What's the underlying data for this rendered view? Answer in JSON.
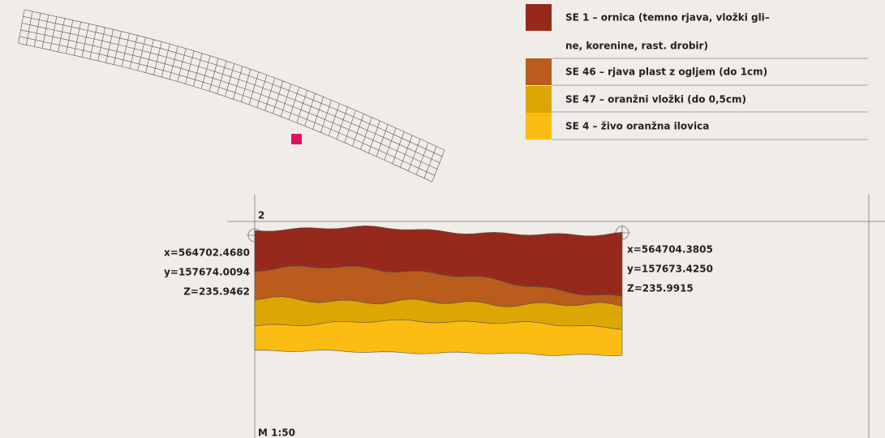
{
  "legend": [
    {
      "color": "#96291c",
      "lines": [
        "SE 1 – ornica (temno rjava, vložki gli–",
        "ne, korenine, rast. drobir)"
      ]
    },
    {
      "color": "#b95c1c",
      "lines": [
        "SE 46 – rjava plast z ogljem (do 1cm)"
      ]
    },
    {
      "color": "#dca704",
      "lines": [
        "SE 47 – oranžni vložki (do 0,5cm)"
      ]
    },
    {
      "color": "#fbbc14",
      "lines": [
        "SE 4 – živo oranžna ilovica"
      ]
    }
  ],
  "section": {
    "label": "2",
    "scale": "M 1:50",
    "left_point": [
      "x=564702.4680",
      "y=157674.0094",
      "Z=235.9462"
    ],
    "right_point": [
      "x=564704.3805",
      "y=157673.4250",
      "Z=235.9915"
    ]
  }
}
